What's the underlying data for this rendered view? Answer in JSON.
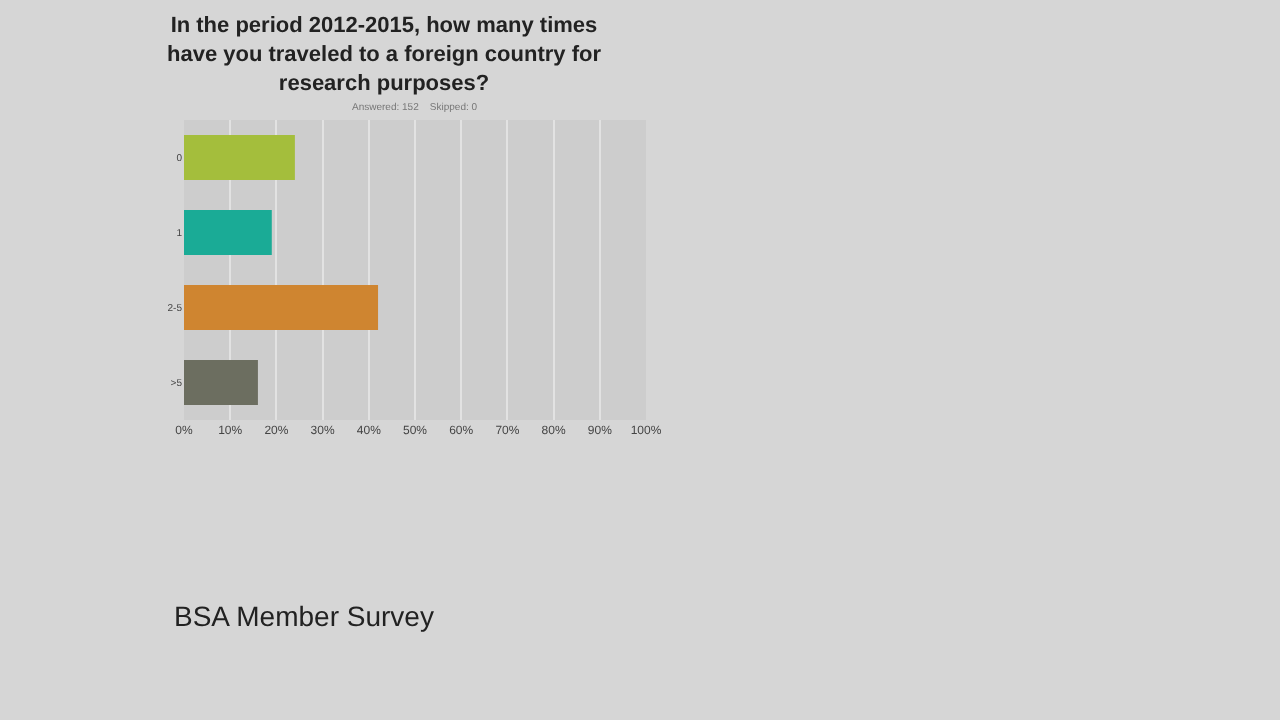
{
  "chart_data": {
    "type": "bar",
    "orientation": "horizontal",
    "title": "In the period 2012-2015, how many times have you traveled to a foreign country for research purposes?",
    "subtitle": "Answered: 152    Skipped: 0",
    "categories": [
      "0",
      "1",
      "2-5",
      ">5"
    ],
    "values": [
      24,
      19,
      42,
      16
    ],
    "colors": [
      "#a4be3c",
      "#1aab96",
      "#cf8530",
      "#6c6e60"
    ],
    "xlim": [
      0,
      100
    ],
    "xticks": [
      {
        "value": 0,
        "label": "0%"
      },
      {
        "value": 10,
        "label": "10%"
      },
      {
        "value": 20,
        "label": "20%"
      },
      {
        "value": 30,
        "label": "30%"
      },
      {
        "value": 40,
        "label": "40%"
      },
      {
        "value": 50,
        "label": "50%"
      },
      {
        "value": 60,
        "label": "60%"
      },
      {
        "value": 70,
        "label": "70%"
      },
      {
        "value": 80,
        "label": "80%"
      },
      {
        "value": 90,
        "label": "90%"
      },
      {
        "value": 100,
        "label": "100%"
      }
    ],
    "grid": "x",
    "annotations": [
      "BSA Member Survey"
    ]
  }
}
